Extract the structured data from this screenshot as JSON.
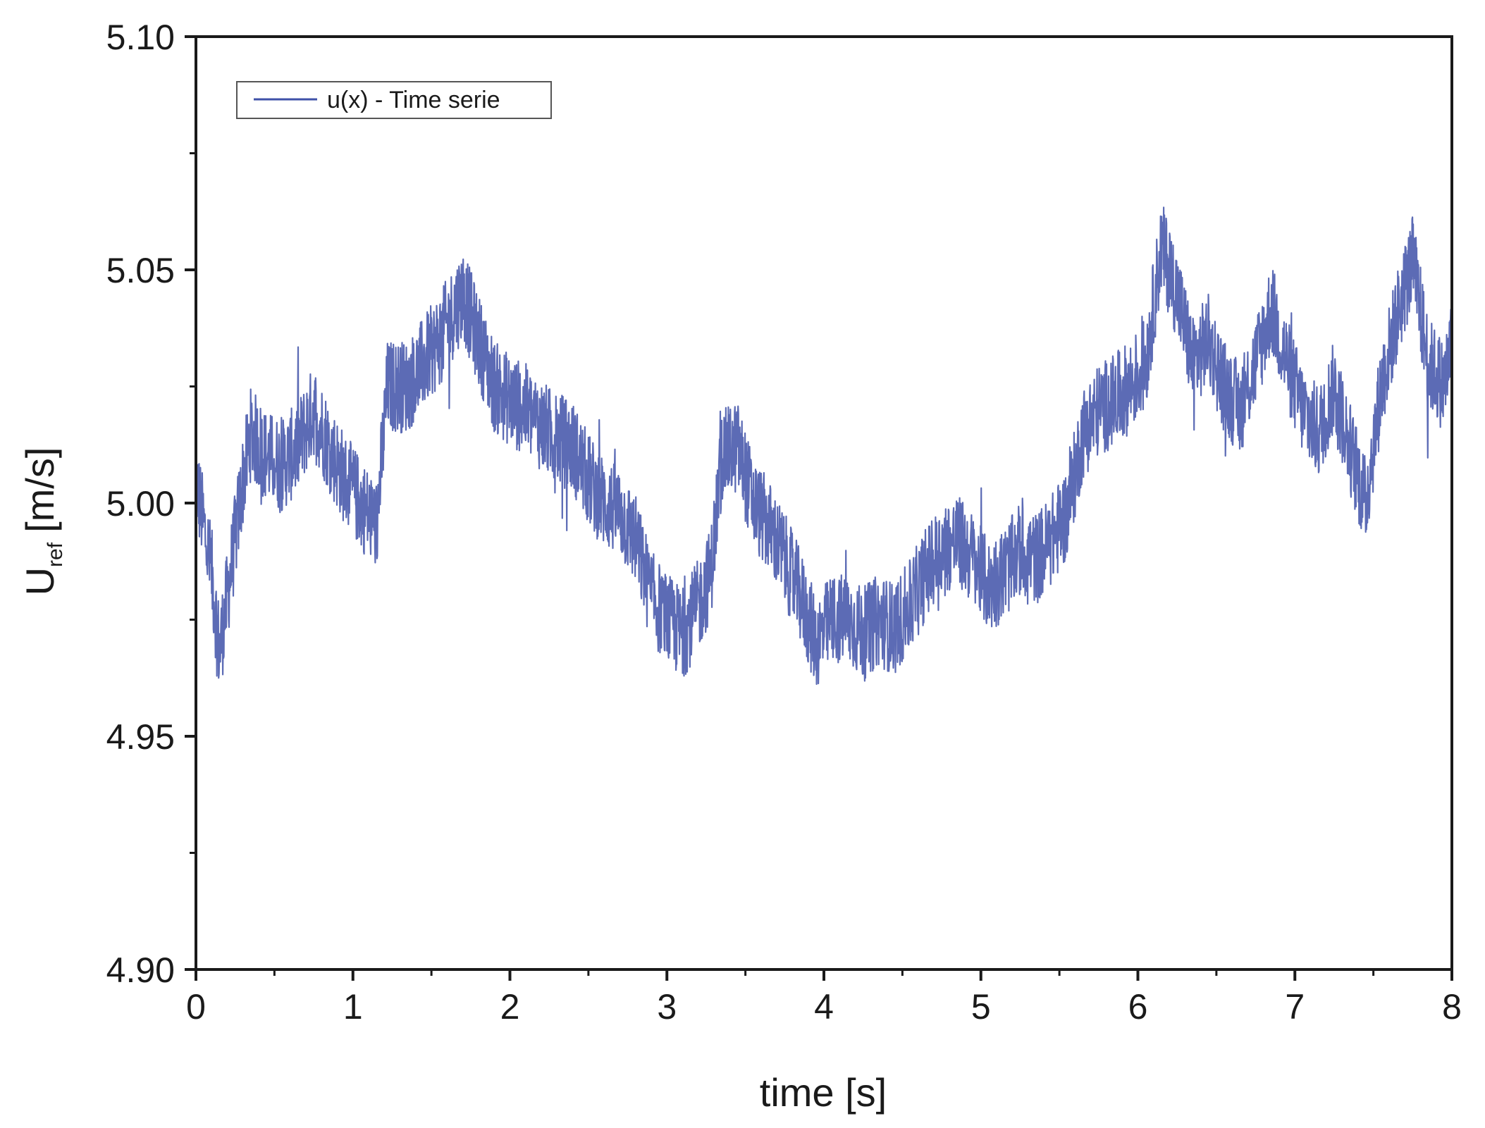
{
  "chart_data": {
    "type": "line",
    "title": "",
    "xlabel": "time [s]",
    "ylabel": {
      "main": "U",
      "subscript": "ref",
      "unit": "[m/s]"
    },
    "xlim": [
      0,
      8
    ],
    "ylim": [
      4.9,
      5.1
    ],
    "x_ticks": [
      "0",
      "1",
      "2",
      "3",
      "4",
      "5",
      "6",
      "7",
      "8"
    ],
    "y_ticks": [
      "4.90",
      "4.95",
      "5.00",
      "5.05",
      "5.10"
    ],
    "grid": false,
    "legend_position": "top-left",
    "series": [
      {
        "name": "u(x) - Time serie",
        "color": "#3f51a8",
        "noise_amplitude": 0.01,
        "points": [
          [
            0.0,
            5.005
          ],
          [
            0.1,
            4.985
          ],
          [
            0.15,
            4.968
          ],
          [
            0.2,
            4.98
          ],
          [
            0.3,
            5.005
          ],
          [
            0.35,
            5.015
          ],
          [
            0.45,
            5.01
          ],
          [
            0.55,
            5.008
          ],
          [
            0.65,
            5.012
          ],
          [
            0.75,
            5.02
          ],
          [
            0.85,
            5.012
          ],
          [
            0.95,
            5.005
          ],
          [
            1.05,
            5.0
          ],
          [
            1.15,
            4.995
          ],
          [
            1.22,
            5.025
          ],
          [
            1.35,
            5.025
          ],
          [
            1.45,
            5.03
          ],
          [
            1.55,
            5.035
          ],
          [
            1.7,
            5.045
          ],
          [
            1.8,
            5.035
          ],
          [
            1.9,
            5.025
          ],
          [
            2.0,
            5.022
          ],
          [
            2.1,
            5.02
          ],
          [
            2.25,
            5.015
          ],
          [
            2.4,
            5.012
          ],
          [
            2.5,
            5.005
          ],
          [
            2.6,
            5.0
          ],
          [
            2.7,
            4.998
          ],
          [
            2.8,
            4.992
          ],
          [
            2.9,
            4.98
          ],
          [
            3.0,
            4.975
          ],
          [
            3.1,
            4.972
          ],
          [
            3.2,
            4.978
          ],
          [
            3.28,
            4.985
          ],
          [
            3.35,
            5.01
          ],
          [
            3.45,
            5.012
          ],
          [
            3.55,
            5.0
          ],
          [
            3.65,
            4.995
          ],
          [
            3.75,
            4.988
          ],
          [
            3.85,
            4.98
          ],
          [
            3.95,
            4.97
          ],
          [
            4.05,
            4.975
          ],
          [
            4.15,
            4.975
          ],
          [
            4.25,
            4.972
          ],
          [
            4.35,
            4.975
          ],
          [
            4.45,
            4.973
          ],
          [
            4.55,
            4.978
          ],
          [
            4.65,
            4.985
          ],
          [
            4.75,
            4.99
          ],
          [
            4.85,
            4.992
          ],
          [
            4.95,
            4.988
          ],
          [
            5.05,
            4.982
          ],
          [
            5.15,
            4.985
          ],
          [
            5.25,
            4.99
          ],
          [
            5.35,
            4.988
          ],
          [
            5.45,
            4.992
          ],
          [
            5.55,
            4.998
          ],
          [
            5.65,
            5.015
          ],
          [
            5.75,
            5.02
          ],
          [
            5.85,
            5.022
          ],
          [
            5.95,
            5.025
          ],
          [
            6.05,
            5.03
          ],
          [
            6.15,
            5.055
          ],
          [
            6.25,
            5.045
          ],
          [
            6.35,
            5.03
          ],
          [
            6.45,
            5.035
          ],
          [
            6.55,
            5.025
          ],
          [
            6.65,
            5.02
          ],
          [
            6.75,
            5.03
          ],
          [
            6.85,
            5.042
          ],
          [
            6.95,
            5.03
          ],
          [
            7.05,
            5.02
          ],
          [
            7.15,
            5.015
          ],
          [
            7.25,
            5.025
          ],
          [
            7.35,
            5.012
          ],
          [
            7.45,
            5.0
          ],
          [
            7.55,
            5.025
          ],
          [
            7.65,
            5.04
          ],
          [
            7.75,
            5.052
          ],
          [
            7.85,
            5.03
          ],
          [
            7.95,
            5.025
          ],
          [
            8.0,
            5.035
          ]
        ]
      }
    ]
  }
}
